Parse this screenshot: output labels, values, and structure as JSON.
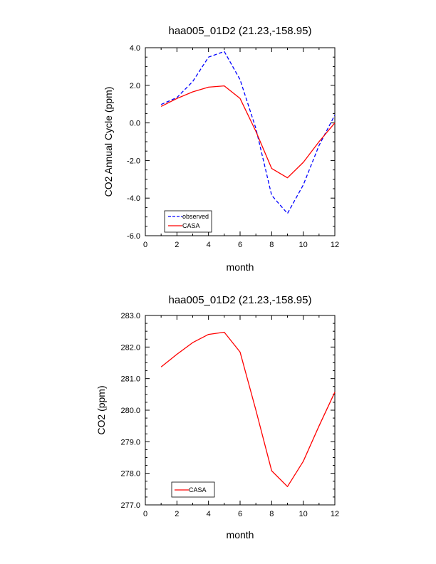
{
  "colors": {
    "observed": "#0000ff",
    "casa": "#ff0000",
    "axes": "#000000",
    "background": "#ffffff"
  },
  "chart_data": [
    {
      "type": "line",
      "title": "haa005_01D2 (21.23,-158.95)",
      "xlabel": "month",
      "ylabel": "CO2 Annual Cycle (ppm)",
      "xlim": [
        0,
        12
      ],
      "ylim": [
        -6.0,
        4.0
      ],
      "xticks": [
        "0",
        "2",
        "4",
        "6",
        "8",
        "10",
        "12"
      ],
      "yticks": [
        "-6.0",
        "-4.0",
        "-2.0",
        "0.0",
        "2.0",
        "4.0"
      ],
      "x": [
        1,
        2,
        3,
        4,
        5,
        6,
        7,
        8,
        9,
        10,
        11,
        12
      ],
      "series": [
        {
          "name": "observed",
          "style": "dashed",
          "color": "#0000ff",
          "values": [
            0.98,
            1.35,
            2.2,
            3.5,
            3.8,
            2.3,
            -0.3,
            -3.85,
            -4.82,
            -3.3,
            -1.2,
            0.42
          ]
        },
        {
          "name": "CASA",
          "style": "solid",
          "color": "#ff0000",
          "values": [
            0.88,
            1.3,
            1.65,
            1.9,
            1.97,
            1.3,
            -0.45,
            -2.42,
            -2.92,
            -2.1,
            -1.0,
            0.0
          ]
        }
      ],
      "legend": {
        "placement": "bottom-left",
        "entries": [
          "observed",
          "CASA"
        ]
      },
      "grid": false
    },
    {
      "type": "line",
      "title": "haa005_01D2 (21.23,-158.95)",
      "xlabel": "month",
      "ylabel": "CO2 (ppm)",
      "xlim": [
        0,
        12
      ],
      "ylim": [
        277.0,
        283.0
      ],
      "xticks": [
        "0",
        "2",
        "4",
        "6",
        "8",
        "10",
        "12"
      ],
      "yticks": [
        "277.0",
        "278.0",
        "279.0",
        "280.0",
        "281.0",
        "282.0",
        "283.0"
      ],
      "x": [
        1,
        2,
        3,
        4,
        5,
        6,
        7,
        8,
        9,
        10,
        11,
        12
      ],
      "series": [
        {
          "name": "CASA",
          "style": "solid",
          "color": "#ff0000",
          "values": [
            281.37,
            281.77,
            282.14,
            282.4,
            282.47,
            281.84,
            280.0,
            278.08,
            277.58,
            278.38,
            279.5,
            280.57
          ]
        }
      ],
      "legend": {
        "placement": "bottom-left",
        "entries": [
          "CASA"
        ]
      },
      "grid": false
    }
  ]
}
